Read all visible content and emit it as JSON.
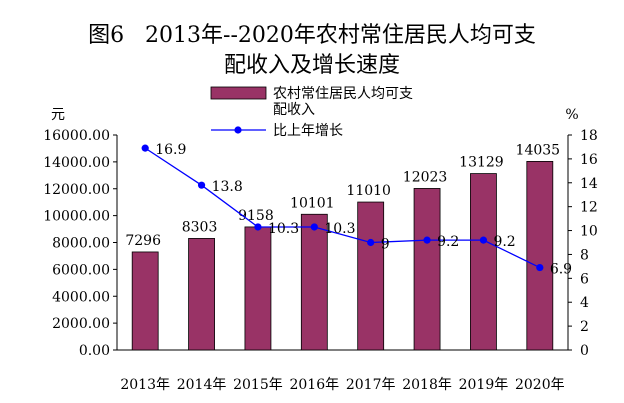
{
  "chart_data": {
    "type": "bar",
    "title": "图6   2013年--2020年农村常住居民人均可支",
    "subtitle": "配收入及增长速度",
    "categories": [
      "2013年",
      "2014年",
      "2015年",
      "2016年",
      "2017年",
      "2018年",
      "2019年",
      "2020年"
    ],
    "y_unit_left": "元",
    "y_unit_right": "%",
    "ylim_left": [
      0,
      16000
    ],
    "ylim_right": [
      0,
      18
    ],
    "left_ticks": [
      "0.00",
      "2000.00",
      "4000.00",
      "6000.00",
      "8000.00",
      "10000.00",
      "12000.00",
      "14000.00",
      "16000.00"
    ],
    "right_ticks": [
      "0",
      "2",
      "4",
      "6",
      "8",
      "10",
      "12",
      "14",
      "16",
      "18"
    ],
    "legend_placement": "top-center",
    "grid": false,
    "series": [
      {
        "name": "农村常住居民人均可支配收入",
        "legend_lines": [
          "农村常住居民人均可支",
          "配收入"
        ],
        "axis": "left",
        "kind": "bar",
        "color": "#993366",
        "values": [
          7296,
          8303,
          9158,
          10101,
          11010,
          12023,
          13129,
          14035
        ],
        "labels": [
          "7296",
          "8303",
          "9158",
          "10101",
          "11010",
          "12023",
          "13129",
          "14035"
        ]
      },
      {
        "name": "比上年增长",
        "axis": "right",
        "kind": "line",
        "color": "#0000ff",
        "values": [
          16.9,
          13.8,
          10.3,
          10.3,
          9.0,
          9.2,
          9.2,
          6.9
        ],
        "labels": [
          "16.9",
          "13.8",
          "10.3",
          "10.3",
          "9",
          "9.2",
          "9.2",
          "6.9"
        ]
      }
    ]
  }
}
